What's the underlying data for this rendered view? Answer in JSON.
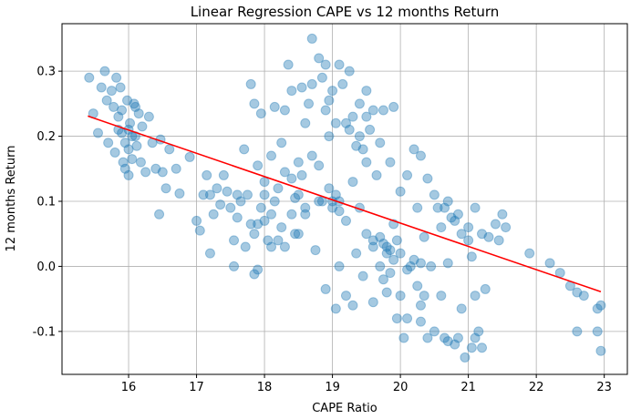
{
  "chart_data": {
    "type": "scatter",
    "title": "Linear Regression CAPE vs 12 months Return",
    "xlabel": "CAPE Ratio",
    "ylabel": "12 months Return",
    "xlim": [
      15.02,
      23.34
    ],
    "ylim": [
      -0.166,
      0.373
    ],
    "x_ticks": [
      "16",
      "17",
      "18",
      "19",
      "20",
      "21",
      "22",
      "23"
    ],
    "x_tick_values": [
      16,
      17,
      18,
      19,
      20,
      21,
      22,
      23
    ],
    "y_ticks": [
      "-0.1",
      "0.0",
      "0.1",
      "0.2",
      "0.3"
    ],
    "y_tick_values": [
      -0.1,
      0,
      0.1,
      0.2,
      0.3
    ],
    "grid": true,
    "point_color": "#1f77b4",
    "point_alpha": 0.4,
    "regression_line": {
      "color": "#ff0000",
      "x": [
        15.4,
        22.95
      ],
      "y": [
        0.231,
        -0.039
      ]
    },
    "points": [
      [
        15.42,
        0.29
      ],
      [
        15.48,
        0.235
      ],
      [
        15.55,
        0.205
      ],
      [
        15.6,
        0.275
      ],
      [
        15.65,
        0.3
      ],
      [
        15.68,
        0.255
      ],
      [
        15.7,
        0.19
      ],
      [
        15.75,
        0.27
      ],
      [
        15.78,
        0.245
      ],
      [
        15.8,
        0.175
      ],
      [
        15.82,
        0.29
      ],
      [
        15.85,
        0.21
      ],
      [
        15.88,
        0.275
      ],
      [
        15.9,
        0.24
      ],
      [
        15.92,
        0.16
      ],
      [
        15.95,
        0.19
      ],
      [
        15.98,
        0.255
      ],
      [
        16.0,
        0.14
      ],
      [
        16.02,
        0.22
      ],
      [
        16.05,
        0.165
      ],
      [
        16.08,
        0.25
      ],
      [
        16.1,
        0.2
      ],
      [
        16.12,
        0.185
      ],
      [
        16.15,
        0.235
      ],
      [
        16.18,
        0.16
      ],
      [
        16.2,
        0.215
      ],
      [
        16.25,
        0.145
      ],
      [
        16.3,
        0.23
      ],
      [
        16.35,
        0.19
      ],
      [
        16.4,
        0.15
      ],
      [
        16.45,
        0.08
      ],
      [
        16.47,
        0.195
      ],
      [
        16.5,
        0.145
      ],
      [
        16.55,
        0.12
      ],
      [
        16.6,
        0.18
      ],
      [
        16.7,
        0.15
      ],
      [
        16.75,
        0.112
      ],
      [
        16.9,
        0.168
      ],
      [
        16.0,
        0.18
      ],
      [
        15.95,
        0.15
      ],
      [
        16.05,
        0.2
      ],
      [
        15.85,
        0.23
      ],
      [
        16.1,
        0.245
      ],
      [
        15.9,
        0.205
      ],
      [
        16.0,
        0.21
      ],
      [
        17.0,
        0.07
      ],
      [
        17.05,
        0.055
      ],
      [
        17.1,
        0.11
      ],
      [
        17.15,
        0.14
      ],
      [
        17.2,
        0.02
      ],
      [
        17.2,
        0.11
      ],
      [
        17.25,
        0.08
      ],
      [
        17.3,
        0.12
      ],
      [
        17.35,
        0.095
      ],
      [
        17.4,
        0.14
      ],
      [
        17.45,
        0.115
      ],
      [
        17.5,
        0.09
      ],
      [
        17.55,
        0.04
      ],
      [
        17.55,
        0.0
      ],
      [
        17.6,
        0.11
      ],
      [
        17.6,
        0.075
      ],
      [
        17.65,
        0.1
      ],
      [
        17.7,
        0.18
      ],
      [
        17.72,
        0.03
      ],
      [
        17.75,
        0.11
      ],
      [
        17.8,
        0.065
      ],
      [
        17.8,
        0.28
      ],
      [
        17.85,
        0.25
      ],
      [
        17.85,
        0.05
      ],
      [
        17.9,
        0.155
      ],
      [
        17.9,
        -0.005
      ],
      [
        17.85,
        -0.012
      ],
      [
        17.95,
        0.09
      ],
      [
        17.95,
        0.235
      ],
      [
        18.0,
        0.07
      ],
      [
        18.0,
        0.13
      ],
      [
        18.05,
        0.04
      ],
      [
        18.1,
        0.17
      ],
      [
        18.1,
        0.03
      ],
      [
        18.15,
        0.1
      ],
      [
        18.15,
        0.245
      ],
      [
        18.2,
        0.12
      ],
      [
        18.25,
        0.06
      ],
      [
        18.25,
        0.19
      ],
      [
        18.3,
        0.24
      ],
      [
        18.3,
        0.145
      ],
      [
        18.3,
        0.03
      ],
      [
        18.35,
        0.31
      ],
      [
        18.4,
        0.08
      ],
      [
        18.4,
        0.135
      ],
      [
        18.4,
        0.27
      ],
      [
        18.45,
        0.05
      ],
      [
        18.5,
        0.11
      ],
      [
        18.5,
        0.16
      ],
      [
        18.55,
        0.275
      ],
      [
        18.6,
        0.22
      ],
      [
        18.6,
        0.09
      ],
      [
        18.65,
        0.25
      ],
      [
        18.7,
        0.35
      ],
      [
        18.7,
        0.28
      ],
      [
        18.7,
        0.17
      ],
      [
        18.75,
        0.025
      ],
      [
        18.8,
        0.155
      ],
      [
        18.8,
        0.32
      ],
      [
        18.85,
        0.29
      ],
      [
        18.85,
        0.1
      ],
      [
        18.9,
        0.31
      ],
      [
        18.9,
        -0.035
      ],
      [
        18.95,
        0.2
      ],
      [
        18.95,
        0.12
      ],
      [
        19.0,
        0.09
      ],
      [
        19.0,
        0.27
      ],
      [
        19.05,
        0.22
      ],
      [
        19.05,
        -0.065
      ],
      [
        19.1,
        0.31
      ],
      [
        19.1,
        0.1
      ],
      [
        19.1,
        0.0
      ],
      [
        19.15,
        0.28
      ],
      [
        19.2,
        0.07
      ],
      [
        19.2,
        -0.045
      ],
      [
        19.25,
        0.3
      ],
      [
        19.25,
        0.21
      ],
      [
        19.3,
        0.13
      ],
      [
        19.3,
        -0.06
      ],
      [
        19.35,
        0.185
      ],
      [
        19.35,
        0.02
      ],
      [
        19.4,
        0.25
      ],
      [
        19.4,
        0.09
      ],
      [
        19.45,
        -0.015
      ],
      [
        19.5,
        0.27
      ],
      [
        19.5,
        0.16
      ],
      [
        19.5,
        0.05
      ],
      [
        19.55,
        0.21
      ],
      [
        19.6,
        0.24
      ],
      [
        19.6,
        0.03
      ],
      [
        19.6,
        -0.055
      ],
      [
        19.65,
        0.14
      ],
      [
        19.7,
        0.19
      ],
      [
        19.7,
        0.0
      ],
      [
        19.75,
        0.24
      ],
      [
        19.8,
        0.03
      ],
      [
        19.8,
        -0.04
      ],
      [
        19.85,
        0.16
      ],
      [
        19.9,
        0.065
      ],
      [
        19.9,
        0.245
      ],
      [
        19.95,
        -0.08
      ],
      [
        20.0,
        0.115
      ],
      [
        20.0,
        0.02
      ],
      [
        20.05,
        -0.11
      ],
      [
        20.1,
        0.14
      ],
      [
        20.1,
        -0.08
      ],
      [
        20.15,
        0.0
      ],
      [
        20.2,
        0.18
      ],
      [
        20.25,
        0.09
      ],
      [
        20.25,
        -0.03
      ],
      [
        20.3,
        0.17
      ],
      [
        20.3,
        -0.085
      ],
      [
        20.35,
        0.045
      ],
      [
        20.4,
        -0.11
      ],
      [
        20.4,
        0.135
      ],
      [
        20.45,
        0.0
      ],
      [
        20.5,
        0.11
      ],
      [
        20.5,
        -0.1
      ],
      [
        20.55,
        0.09
      ],
      [
        20.6,
        -0.045
      ],
      [
        20.65,
        -0.11
      ],
      [
        20.7,
        0.1
      ],
      [
        20.7,
        0.005
      ],
      [
        20.75,
        0.075
      ],
      [
        20.8,
        -0.12
      ],
      [
        20.85,
        0.08
      ],
      [
        20.9,
        -0.065
      ],
      [
        20.95,
        -0.14
      ],
      [
        21.0,
        0.04
      ],
      [
        21.05,
        0.015
      ],
      [
        21.05,
        -0.125
      ],
      [
        21.1,
        0.09
      ],
      [
        21.1,
        -0.045
      ],
      [
        21.15,
        -0.1
      ],
      [
        21.2,
        0.05
      ],
      [
        21.25,
        -0.035
      ],
      [
        21.3,
        0.045
      ],
      [
        21.4,
        0.065
      ],
      [
        21.45,
        0.04
      ],
      [
        21.5,
        0.08
      ],
      [
        21.55,
        0.06
      ],
      [
        21.9,
        0.02
      ],
      [
        22.2,
        0.005
      ],
      [
        22.35,
        -0.01
      ],
      [
        22.5,
        -0.03
      ],
      [
        22.6,
        -0.04
      ],
      [
        22.6,
        -0.1
      ],
      [
        22.7,
        -0.045
      ],
      [
        22.9,
        -0.1
      ],
      [
        22.9,
        -0.065
      ],
      [
        22.95,
        -0.13
      ],
      [
        22.95,
        -0.06
      ],
      [
        19.8,
        0.02
      ],
      [
        19.75,
        0.035
      ],
      [
        19.85,
        0.025
      ],
      [
        19.9,
        0.01
      ],
      [
        19.7,
        0.045
      ],
      [
        19.95,
        0.04
      ],
      [
        19.6,
        0.04
      ],
      [
        18.9,
        0.24
      ],
      [
        18.95,
        0.255
      ],
      [
        19.2,
        0.22
      ],
      [
        19.3,
        0.23
      ],
      [
        19.4,
        0.2
      ],
      [
        19.5,
        0.23
      ],
      [
        19.45,
        0.18
      ],
      [
        18.5,
        0.05
      ],
      [
        18.55,
        0.14
      ],
      [
        18.2,
        0.04
      ],
      [
        18.1,
        0.08
      ],
      [
        17.9,
        0.065
      ],
      [
        18.0,
        0.11
      ],
      [
        18.45,
        0.105
      ],
      [
        18.6,
        0.08
      ],
      [
        18.8,
        0.1
      ],
      [
        19.0,
        0.1
      ],
      [
        19.05,
        0.11
      ],
      [
        19.1,
        0.085
      ],
      [
        20.6,
        0.06
      ],
      [
        20.65,
        0.09
      ],
      [
        20.8,
        0.07
      ],
      [
        20.9,
        0.05
      ],
      [
        21.0,
        0.06
      ],
      [
        20.2,
        0.01
      ],
      [
        20.3,
        0.005
      ],
      [
        20.1,
        -0.005
      ],
      [
        19.85,
        -0.01
      ],
      [
        19.75,
        -0.02
      ],
      [
        20.0,
        -0.045
      ],
      [
        20.3,
        -0.06
      ],
      [
        20.35,
        -0.045
      ],
      [
        20.7,
        -0.115
      ],
      [
        20.85,
        -0.11
      ],
      [
        21.1,
        -0.11
      ],
      [
        21.2,
        -0.125
      ]
    ]
  }
}
